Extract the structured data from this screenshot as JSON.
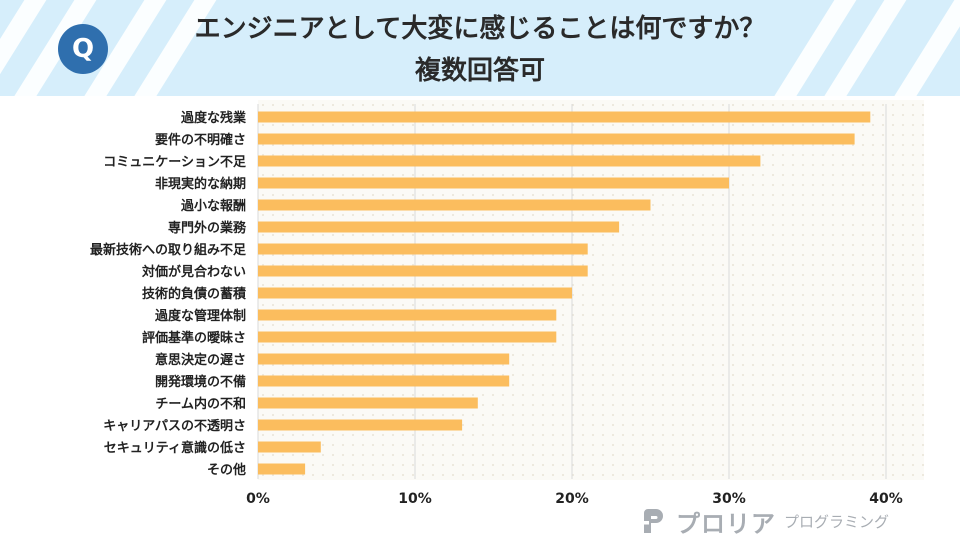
{
  "header": {
    "icon_label": "Q",
    "title": "エンジニアとして大変に感じることは何ですか？",
    "subtitle": "複数回答可"
  },
  "chart_data": {
    "type": "bar",
    "orientation": "horizontal",
    "title": "エンジニアとして大変に感じることは何ですか？ 複数回答可",
    "categories": [
      "過度な残業",
      "要件の不明確さ",
      "コミュニケーション不足",
      "非現実的な納期",
      "過小な報酬",
      "専門外の業務",
      "最新技術への取り組み不足",
      "対価が見合わない",
      "技術的負債の蓄積",
      "過度な管理体制",
      "評価基準の曖昧さ",
      "意思決定の遅さ",
      "開発環境の不備",
      "チーム内の不和",
      "キャリアパスの不透明さ",
      "セキュリティ意識の低さ",
      "その他"
    ],
    "values": [
      39,
      38,
      32,
      30,
      25,
      23,
      21,
      21,
      20,
      19,
      19,
      16,
      16,
      14,
      13,
      4,
      3
    ],
    "unit": "%",
    "xlim": [
      0,
      40
    ],
    "xticks": [
      0,
      10,
      20,
      30,
      40
    ],
    "xtick_labels": [
      "0%",
      "10%",
      "20%",
      "30%",
      "40%"
    ],
    "grid": true,
    "bar_color": "#fbbd5e",
    "grid_color": "#d9d9d9"
  },
  "brand": {
    "name": "プロリア",
    "sub": "プログラミング",
    "color": "#a8adb3"
  }
}
